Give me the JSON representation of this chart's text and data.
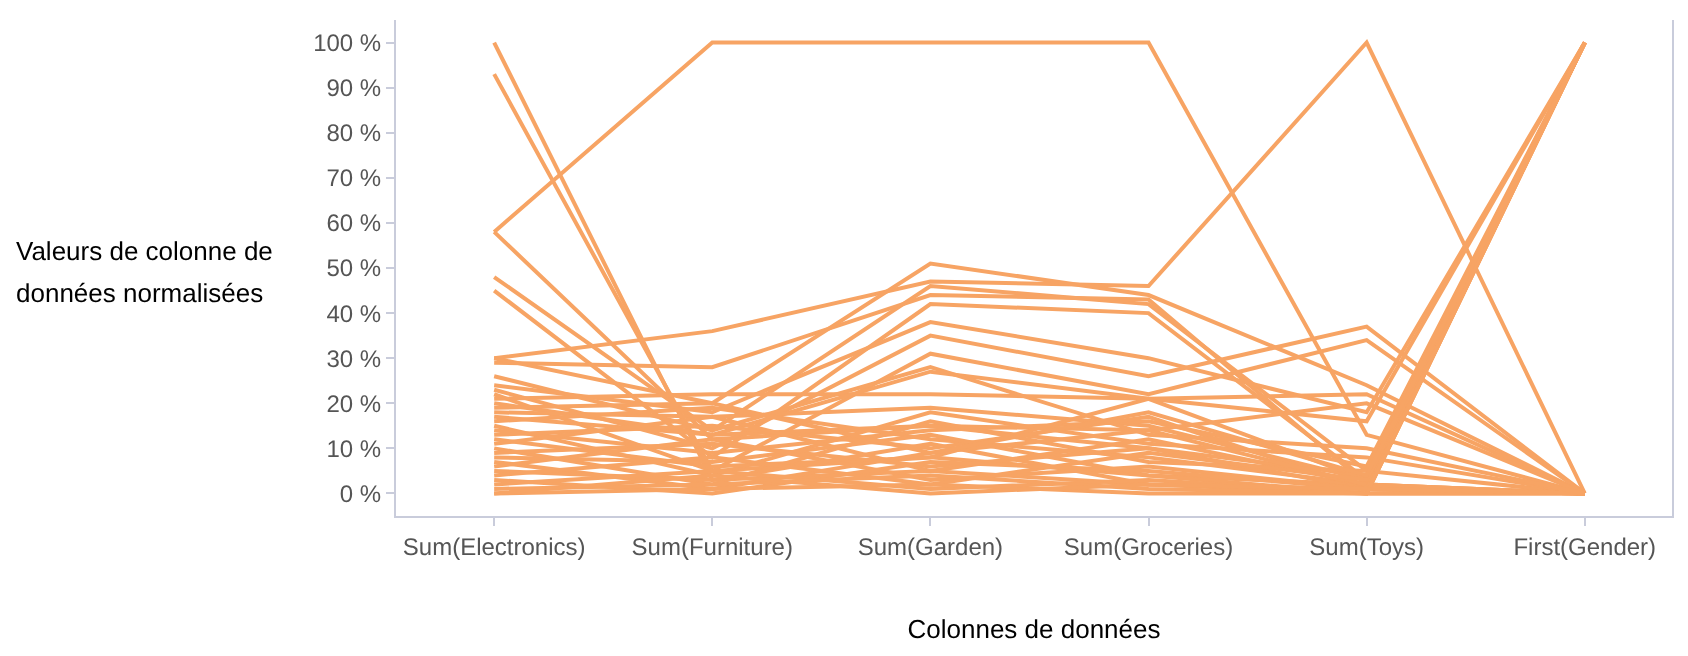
{
  "chart_data": {
    "type": "line",
    "xlabel": "Colonnes de données",
    "ylabel": "Valeurs de colonne de données normalisées",
    "categories": [
      "Sum(Electronics)",
      "Sum(Furniture)",
      "Sum(Garden)",
      "Sum(Groceries)",
      "Sum(Toys)",
      "First(Gender)"
    ],
    "ylim": [
      -5,
      105
    ],
    "yticks": [
      {
        "value": 0,
        "label": "0 %"
      },
      {
        "value": 10,
        "label": "10 %"
      },
      {
        "value": 20,
        "label": "20 %"
      },
      {
        "value": 30,
        "label": "30 %"
      },
      {
        "value": 40,
        "label": "40 %"
      },
      {
        "value": 50,
        "label": "50 %"
      },
      {
        "value": 60,
        "label": "60 %"
      },
      {
        "value": 70,
        "label": "70 %"
      },
      {
        "value": 80,
        "label": "80 %"
      },
      {
        "value": 90,
        "label": "90 %"
      },
      {
        "value": 100,
        "label": "100 %"
      }
    ],
    "grid": false,
    "marker": "none",
    "line_style": "solid",
    "series": [
      {
        "color": "#f7a464",
        "values": [
          100,
          3,
          5,
          2,
          1,
          0
        ]
      },
      {
        "color": "#f7a464",
        "values": [
          93,
          5,
          8,
          4,
          2,
          0
        ]
      },
      {
        "color": "#f7a464",
        "values": [
          58,
          100,
          100,
          100,
          13,
          0
        ]
      },
      {
        "color": "#f7a464",
        "values": [
          58,
          12,
          15,
          10,
          4,
          100
        ]
      },
      {
        "color": "#f7a464",
        "values": [
          30,
          36,
          47,
          46,
          100,
          0
        ]
      },
      {
        "color": "#f7a464",
        "values": [
          48,
          14,
          46,
          42,
          5,
          0
        ]
      },
      {
        "color": "#f7a464",
        "values": [
          45,
          8,
          42,
          40,
          3,
          100
        ]
      },
      {
        "color": "#f7a464",
        "values": [
          29,
          28,
          44,
          43,
          2,
          100
        ]
      },
      {
        "color": "#f7a464",
        "values": [
          30,
          20,
          51,
          44,
          24,
          0
        ]
      },
      {
        "color": "#f7a464",
        "values": [
          24,
          18,
          38,
          30,
          18,
          100
        ]
      },
      {
        "color": "#f7a464",
        "values": [
          23,
          10,
          35,
          26,
          37,
          0
        ]
      },
      {
        "color": "#f7a464",
        "values": [
          22,
          5,
          31,
          22,
          34,
          0
        ]
      },
      {
        "color": "#f7a464",
        "values": [
          21,
          22,
          22,
          21,
          22,
          0
        ]
      },
      {
        "color": "#f7a464",
        "values": [
          20,
          13,
          27,
          21,
          16,
          100
        ]
      },
      {
        "color": "#f7a464",
        "values": [
          18,
          17,
          19,
          15,
          3,
          100
        ]
      },
      {
        "color": "#f7a464",
        "values": [
          17,
          13,
          15,
          14,
          20,
          0
        ]
      },
      {
        "color": "#f7a464",
        "values": [
          16,
          19,
          12,
          8,
          2,
          100
        ]
      },
      {
        "color": "#f7a464",
        "values": [
          15,
          4,
          18,
          11,
          8,
          0
        ]
      },
      {
        "color": "#f7a464",
        "values": [
          14,
          9,
          14,
          16,
          6,
          100
        ]
      },
      {
        "color": "#f7a464",
        "values": [
          13,
          15,
          10,
          17,
          1,
          0
        ]
      },
      {
        "color": "#f7a464",
        "values": [
          12,
          6,
          8,
          21,
          3,
          100
        ]
      },
      {
        "color": "#f7a464",
        "values": [
          11,
          17,
          5,
          12,
          2,
          0
        ]
      },
      {
        "color": "#f7a464",
        "values": [
          10,
          2,
          16,
          7,
          5,
          100
        ]
      },
      {
        "color": "#f7a464",
        "values": [
          9,
          11,
          6,
          10,
          1,
          0
        ]
      },
      {
        "color": "#f7a464",
        "values": [
          8,
          7,
          13,
          4,
          0,
          100
        ]
      },
      {
        "color": "#f7a464",
        "values": [
          7,
          1,
          9,
          14,
          2,
          0
        ]
      },
      {
        "color": "#f7a464",
        "values": [
          6,
          12,
          3,
          6,
          1,
          100
        ]
      },
      {
        "color": "#f7a464",
        "values": [
          5,
          3,
          11,
          2,
          0,
          0
        ]
      },
      {
        "color": "#f7a464",
        "values": [
          4,
          8,
          2,
          9,
          3,
          100
        ]
      },
      {
        "color": "#f7a464",
        "values": [
          3,
          0,
          7,
          5,
          1,
          0
        ]
      },
      {
        "color": "#f7a464",
        "values": [
          2,
          5,
          1,
          3,
          0,
          100
        ]
      },
      {
        "color": "#f7a464",
        "values": [
          1,
          2,
          4,
          1,
          0,
          0
        ]
      },
      {
        "color": "#f7a464",
        "values": [
          0,
          1,
          2,
          0,
          0,
          100
        ]
      },
      {
        "color": "#f7a464",
        "values": [
          0,
          4,
          0,
          2,
          1,
          0
        ]
      },
      {
        "color": "#f7a464",
        "values": [
          26,
          14,
          28,
          13,
          10,
          0
        ]
      },
      {
        "color": "#f7a464",
        "values": [
          19,
          20,
          9,
          18,
          4,
          100
        ]
      }
    ]
  }
}
